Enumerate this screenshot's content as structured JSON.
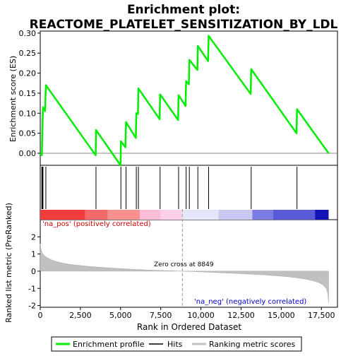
{
  "chart_data": {
    "type": "line",
    "title_line1": "Enrichment plot:",
    "title_line2": "REACTOME_PLATELET_SENSITIZATION_BY_LDL",
    "top_panel": {
      "ylabel": "Enrichment score (ES)",
      "ylim": [
        -0.03,
        0.305
      ],
      "yticks": [
        0.0,
        0.05,
        0.1,
        0.15,
        0.2,
        0.25,
        0.3
      ],
      "ytick_labels": [
        "0.00",
        "0.05",
        "0.10",
        "0.15",
        "0.20",
        "0.25",
        "0.30"
      ],
      "series": [
        {
          "name": "Enrichment profile",
          "color": "#00ee00",
          "x": [
            0,
            100,
            130,
            150,
            170,
            300,
            350,
            3450,
            3470,
            5000,
            5020,
            5300,
            5340,
            5950,
            5980,
            6080,
            6110,
            7430,
            7460,
            8580,
            8610,
            9050,
            9080,
            9250,
            9280,
            9780,
            9810,
            10450,
            10480,
            13100,
            13130,
            15950,
            15980,
            17950
          ],
          "y": [
            0.0,
            -0.005,
            0.055,
            0.085,
            0.115,
            0.105,
            0.17,
            -0.005,
            0.058,
            -0.03,
            0.03,
            0.015,
            0.078,
            0.038,
            0.1,
            0.098,
            0.162,
            0.085,
            0.147,
            0.083,
            0.145,
            0.118,
            0.18,
            0.172,
            0.233,
            0.208,
            0.268,
            0.23,
            0.293,
            0.148,
            0.21,
            0.05,
            0.11,
            0.0
          ]
        }
      ]
    },
    "hits": [
      100,
      130,
      150,
      170,
      350,
      3470,
      5020,
      5340,
      5980,
      6110,
      7460,
      8610,
      9080,
      9280,
      9810,
      10480,
      13130,
      15980
    ],
    "gradient_bar": [
      {
        "from": 0,
        "to": 2800,
        "color": "#f03c3c"
      },
      {
        "from": 2800,
        "to": 4200,
        "color": "#f46a6a"
      },
      {
        "from": 4200,
        "to": 6200,
        "color": "#f89090"
      },
      {
        "from": 6200,
        "to": 7500,
        "color": "#fbbcd8"
      },
      {
        "from": 7500,
        "to": 8850,
        "color": "#fcd0e8"
      },
      {
        "from": 8850,
        "to": 11100,
        "color": "#e6e6fa"
      },
      {
        "from": 11100,
        "to": 13200,
        "color": "#c8c8f2"
      },
      {
        "from": 13200,
        "to": 14500,
        "color": "#7c7ce6"
      },
      {
        "from": 14500,
        "to": 17100,
        "color": "#5a5ad8"
      },
      {
        "from": 17100,
        "to": 17950,
        "color": "#1414b4"
      }
    ],
    "bottom_panel": {
      "ylabel": "Ranked list metric (PreRanked)",
      "xlabel": "Rank in Ordered Dataset",
      "ylim": [
        -2.1,
        3.0
      ],
      "yticks": [
        -2,
        -1,
        0,
        1,
        2
      ],
      "ytick_labels": [
        "-2",
        "-1",
        "0",
        "1",
        "2"
      ],
      "metric_curve": {
        "x": [
          0,
          30,
          100,
          200,
          400,
          700,
          1000,
          1500,
          2000,
          3000,
          4000,
          5000,
          6000,
          7000,
          8000,
          8849,
          10000,
          11000,
          12000,
          13000,
          14000,
          15000,
          15500,
          16000,
          16500,
          17000,
          17300,
          17600,
          17800,
          17900,
          17950
        ],
        "y": [
          1.6,
          1.35,
          1.1,
          0.95,
          0.8,
          0.66,
          0.56,
          0.45,
          0.38,
          0.28,
          0.21,
          0.15,
          0.1,
          0.06,
          0.03,
          0.0,
          -0.04,
          -0.08,
          -0.12,
          -0.17,
          -0.22,
          -0.29,
          -0.33,
          -0.39,
          -0.46,
          -0.56,
          -0.65,
          -0.8,
          -1.0,
          -1.3,
          -1.85
        ]
      },
      "zero_cross_x": 8849,
      "zero_cross_label": "Zero cross at 8849",
      "pos_label": "'na_pos' (positively correlated)",
      "neg_label": "'na_neg' (negatively correlated)"
    },
    "xlim": [
      0,
      18500
    ],
    "xticks": [
      0,
      2500,
      5000,
      7500,
      10000,
      12500,
      15000,
      17500
    ],
    "xtick_labels": [
      "0",
      "2,500",
      "5,000",
      "7,500",
      "10,000",
      "12,500",
      "15,000",
      "17,500"
    ],
    "legend": [
      {
        "label": "Enrichment profile",
        "color": "#00ee00"
      },
      {
        "label": "Hits",
        "color": "#000000"
      },
      {
        "label": "Ranking metric scores",
        "color": "#c0c0c0"
      }
    ]
  }
}
